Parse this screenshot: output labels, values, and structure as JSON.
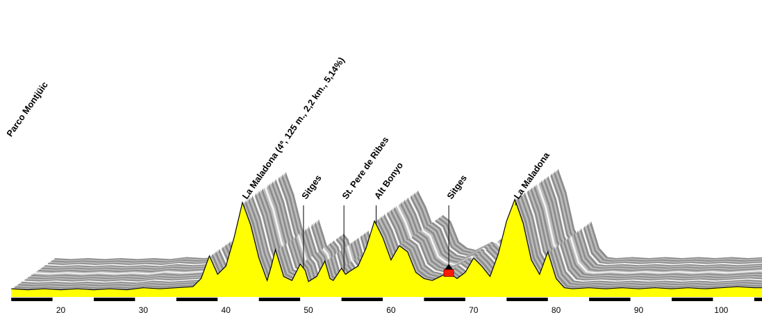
{
  "chart_data": {
    "type": "area",
    "xlabel": "",
    "ylabel": "",
    "xlim": [
      14,
      105
    ],
    "ylim": [
      0,
      160
    ],
    "x_ticks": [
      20,
      30,
      40,
      50,
      60,
      70,
      80,
      90,
      100
    ],
    "grid": false,
    "colors": {
      "fill": "#ffff00",
      "outline": "#000000",
      "shadow": "#8c8c8c",
      "shadow_light": "#bcbcbc",
      "axis_bar": "#000000"
    },
    "series": [
      {
        "x": [
          14,
          16,
          18,
          20,
          22,
          24,
          26,
          28,
          30,
          32,
          34,
          36,
          37,
          38,
          39,
          40,
          41,
          42,
          43,
          44,
          45,
          45.5,
          46,
          46.5,
          47,
          48,
          49,
          49.6,
          50,
          51,
          52,
          52.6,
          53,
          54,
          54.5,
          55,
          56,
          57,
          58,
          59,
          60,
          61,
          62,
          63,
          64,
          65,
          66,
          67,
          68,
          69,
          70,
          71,
          72,
          73,
          74,
          75,
          76,
          77,
          78,
          79,
          80,
          81,
          82,
          84,
          86,
          88,
          90,
          92,
          94,
          96,
          98,
          100,
          102,
          104,
          105
        ],
        "y": [
          8,
          7,
          8,
          7,
          8,
          7,
          8,
          7,
          9,
          8,
          9,
          10,
          18,
          40,
          22,
          30,
          58,
          92,
          70,
          38,
          16,
          30,
          46,
          33,
          20,
          16,
          32,
          26,
          15,
          20,
          35,
          18,
          16,
          28,
          22,
          25,
          30,
          48,
          74,
          58,
          36,
          50,
          44,
          24,
          18,
          16,
          20,
          24,
          18,
          24,
          38,
          30,
          20,
          42,
          74,
          95,
          72,
          36,
          22,
          44,
          18,
          9,
          8,
          9,
          8,
          9,
          8,
          9,
          8,
          9,
          8,
          9,
          10,
          9,
          9
        ]
      }
    ],
    "landmarks": [
      {
        "label": "Parco Montjüic",
        "x": 14
      },
      {
        "label": "La Maladona (4ª, 125 m., 2,2 km., 5,14%)",
        "x": 42.2
      },
      {
        "label": "Sitges",
        "x": 49.4
      },
      {
        "label": "St. Pere de Ribes",
        "x": 54.3
      },
      {
        "label": "Alt Bonyo",
        "x": 58.2
      },
      {
        "label": "Sitges",
        "x": 67.0
      },
      {
        "label": "La Maladona",
        "x": 75.1
      }
    ],
    "finish_marker": {
      "x": 67.0
    }
  }
}
